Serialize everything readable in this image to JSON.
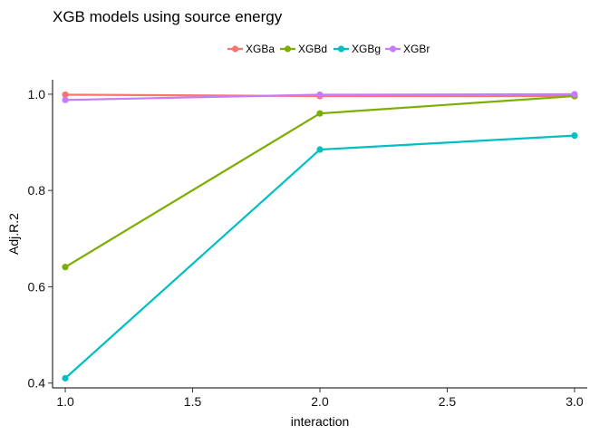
{
  "chart_data": {
    "type": "line",
    "title": "XGB models using source energy",
    "xlabel": "interaction",
    "ylabel": "Adj.R.2",
    "x": [
      1.0,
      2.0,
      3.0
    ],
    "xlim": [
      0.95,
      3.05
    ],
    "ylim": [
      0.39,
      1.03
    ],
    "xticks": [
      "1.0",
      "1.5",
      "2.0",
      "2.5",
      "3.0"
    ],
    "xtick_values": [
      1.0,
      1.5,
      2.0,
      2.5,
      3.0
    ],
    "yticks": [
      "0.4",
      "0.6",
      "0.8",
      "1.0"
    ],
    "ytick_values": [
      0.4,
      0.6,
      0.8,
      1.0
    ],
    "grid": false,
    "legend_position": "top-center",
    "series": [
      {
        "name": "XGBa",
        "color": "#F8766D",
        "values": [
          0.999,
          0.996,
          0.996
        ]
      },
      {
        "name": "XGBd",
        "color": "#7CAE00",
        "values": [
          0.641,
          0.96,
          0.996
        ]
      },
      {
        "name": "XGBg",
        "color": "#00BFC4",
        "values": [
          0.41,
          0.885,
          0.914
        ]
      },
      {
        "name": "XGBr",
        "color": "#C77CFF",
        "values": [
          0.988,
          0.999,
          1.0
        ]
      }
    ]
  }
}
